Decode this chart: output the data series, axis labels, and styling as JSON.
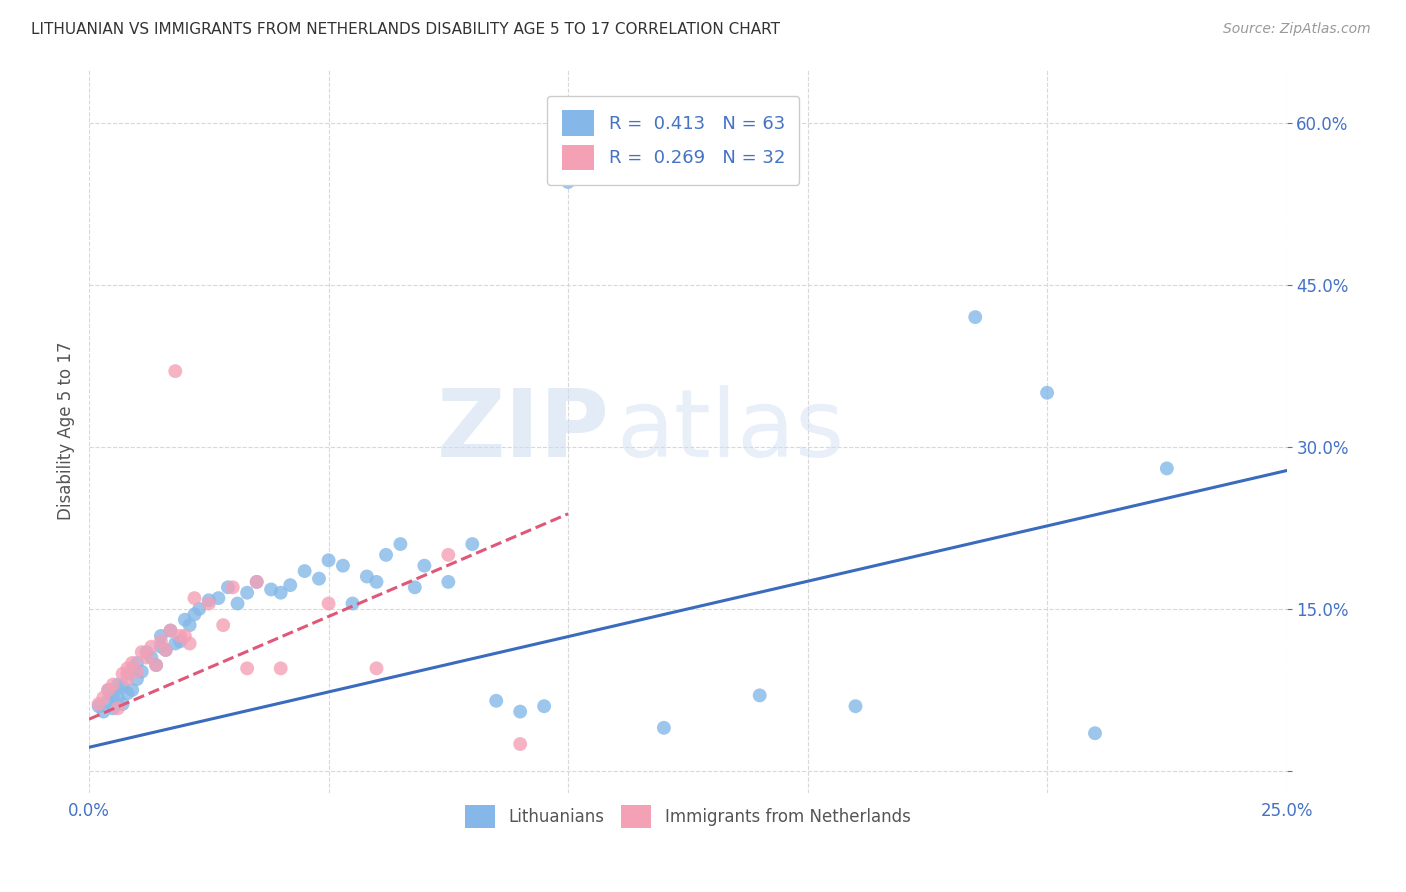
{
  "title": "LITHUANIAN VS IMMIGRANTS FROM NETHERLANDS DISABILITY AGE 5 TO 17 CORRELATION CHART",
  "source": "Source: ZipAtlas.com",
  "ylabel": "Disability Age 5 to 17",
  "xlim": [
    0.0,
    0.25
  ],
  "ylim": [
    -0.02,
    0.65
  ],
  "xticks": [
    0.0,
    0.05,
    0.1,
    0.15,
    0.2,
    0.25
  ],
  "xticklabels": [
    "0.0%",
    "",
    "",
    "",
    "",
    "25.0%"
  ],
  "ytick_positions": [
    0.0,
    0.15,
    0.3,
    0.45,
    0.6
  ],
  "ytick_labels": [
    "",
    "15.0%",
    "30.0%",
    "45.0%",
    "60.0%"
  ],
  "background_color": "#ffffff",
  "grid_color": "#d8d8d8",
  "watermark1": "ZIP",
  "watermark2": "atlas",
  "blue_color": "#85b8e8",
  "pink_color": "#f4a0b5",
  "blue_line_color": "#3a6bbf",
  "pink_line_color": "#e05878",
  "axis_label_color": "#555555",
  "tick_color": "#4472c4",
  "legend_r1": "R =  0.413",
  "legend_n1": "N = 63",
  "legend_r2": "R =  0.269",
  "legend_n2": "N = 32",
  "blue_scatter_x": [
    0.002,
    0.003,
    0.004,
    0.004,
    0.005,
    0.005,
    0.006,
    0.006,
    0.007,
    0.007,
    0.008,
    0.008,
    0.009,
    0.009,
    0.01,
    0.01,
    0.011,
    0.012,
    0.013,
    0.014,
    0.015,
    0.015,
    0.016,
    0.017,
    0.018,
    0.019,
    0.02,
    0.021,
    0.022,
    0.023,
    0.025,
    0.027,
    0.029,
    0.031,
    0.033,
    0.035,
    0.038,
    0.04,
    0.042,
    0.045,
    0.048,
    0.05,
    0.053,
    0.055,
    0.058,
    0.06,
    0.062,
    0.065,
    0.068,
    0.07,
    0.075,
    0.08,
    0.085,
    0.09,
    0.095,
    0.1,
    0.12,
    0.14,
    0.16,
    0.185,
    0.2,
    0.21,
    0.225
  ],
  "blue_scatter_y": [
    0.06,
    0.055,
    0.065,
    0.075,
    0.058,
    0.07,
    0.068,
    0.08,
    0.062,
    0.078,
    0.072,
    0.09,
    0.075,
    0.095,
    0.085,
    0.1,
    0.092,
    0.11,
    0.105,
    0.098,
    0.115,
    0.125,
    0.112,
    0.13,
    0.118,
    0.12,
    0.14,
    0.135,
    0.145,
    0.15,
    0.158,
    0.16,
    0.17,
    0.155,
    0.165,
    0.175,
    0.168,
    0.165,
    0.172,
    0.185,
    0.178,
    0.195,
    0.19,
    0.155,
    0.18,
    0.175,
    0.2,
    0.21,
    0.17,
    0.19,
    0.175,
    0.21,
    0.065,
    0.055,
    0.06,
    0.545,
    0.04,
    0.07,
    0.06,
    0.42,
    0.35,
    0.035,
    0.28
  ],
  "pink_scatter_x": [
    0.002,
    0.003,
    0.004,
    0.005,
    0.006,
    0.007,
    0.008,
    0.008,
    0.009,
    0.01,
    0.011,
    0.012,
    0.013,
    0.014,
    0.015,
    0.016,
    0.017,
    0.018,
    0.019,
    0.02,
    0.021,
    0.022,
    0.025,
    0.028,
    0.03,
    0.033,
    0.035,
    0.04,
    0.05,
    0.06,
    0.075,
    0.09
  ],
  "pink_scatter_y": [
    0.062,
    0.068,
    0.075,
    0.08,
    0.058,
    0.09,
    0.095,
    0.085,
    0.1,
    0.092,
    0.11,
    0.105,
    0.115,
    0.098,
    0.12,
    0.112,
    0.13,
    0.37,
    0.125,
    0.125,
    0.118,
    0.16,
    0.155,
    0.135,
    0.17,
    0.095,
    0.175,
    0.095,
    0.155,
    0.095,
    0.2,
    0.025
  ],
  "blue_line_x0": 0.0,
  "blue_line_y0": 0.022,
  "blue_line_x1": 0.25,
  "blue_line_y1": 0.278,
  "pink_line_x0": 0.0,
  "pink_line_y0": 0.048,
  "pink_line_x1": 0.1,
  "pink_line_y1": 0.238
}
